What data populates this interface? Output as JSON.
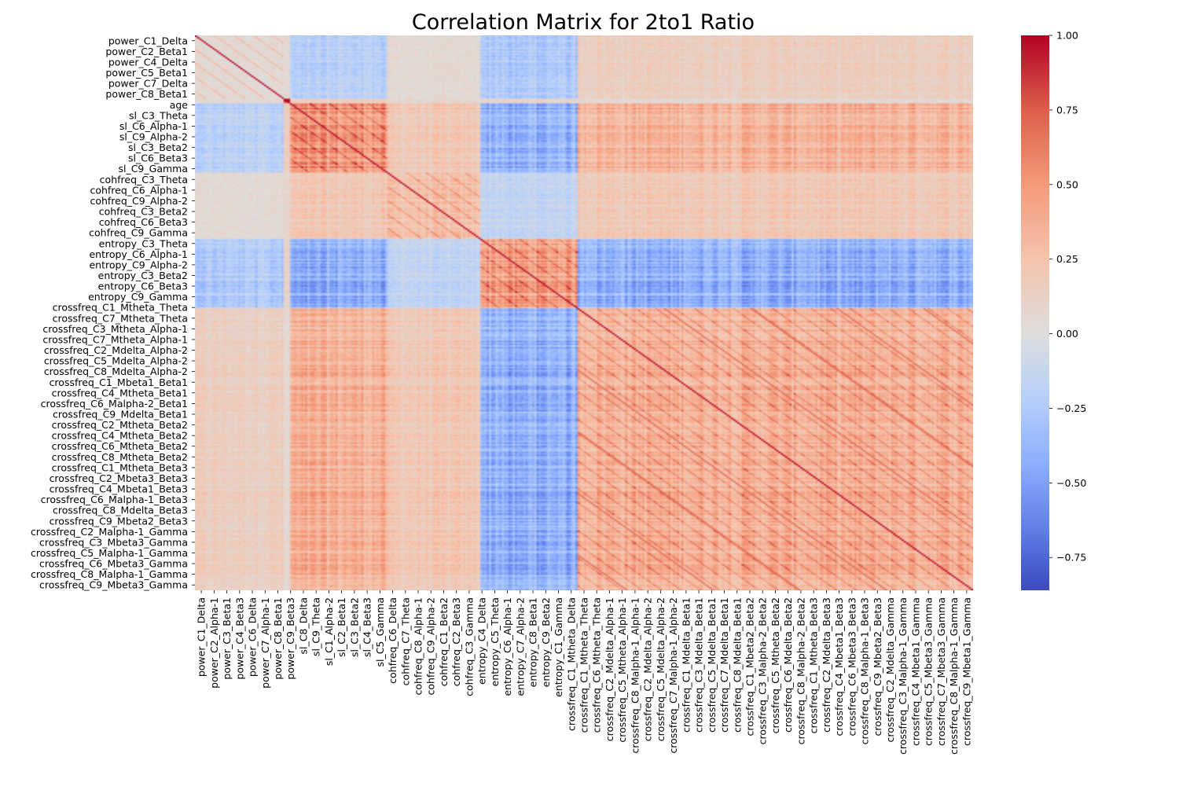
{
  "chart_data": {
    "type": "heatmap",
    "title": "Correlation Matrix for 2to1 Ratio",
    "xlabel": "",
    "ylabel": "",
    "colormap": "coolwarm",
    "value_range": [
      -0.86,
      1.0
    ],
    "colorbar_ticks": [
      "1.00",
      "0.75",
      "0.50",
      "0.25",
      "0.00",
      "−0.25",
      "−0.50",
      "−0.75"
    ],
    "colorbar_tick_values": [
      1.0,
      0.75,
      0.5,
      0.25,
      0.0,
      -0.25,
      -0.5,
      -0.75
    ],
    "diagonal_value": 1.0,
    "row_tick_labels": [
      "power_C1_Delta",
      "power_C2_Beta1",
      "power_C4_Delta",
      "power_C5_Beta1",
      "power_C7_Delta",
      "power_C8_Beta1",
      "age",
      "sl_C3_Theta",
      "sl_C6_Alpha-1",
      "sl_C9_Alpha-2",
      "sl_C3_Beta2",
      "sl_C6_Beta3",
      "sl_C9_Gamma",
      "cohfreq_C3_Theta",
      "cohfreq_C6_Alpha-1",
      "cohfreq_C9_Alpha-2",
      "cohfreq_C3_Beta2",
      "cohfreq_C6_Beta3",
      "cohfreq_C9_Gamma",
      "entropy_C3_Theta",
      "entropy_C6_Alpha-1",
      "entropy_C9_Alpha-2",
      "entropy_C3_Beta2",
      "entropy_C6_Beta3",
      "entropy_C9_Gamma",
      "crossfreq_C1_Mtheta_Theta",
      "crossfreq_C7_Mtheta_Theta",
      "crossfreq_C3_Mtheta_Alpha-1",
      "crossfreq_C7_Mtheta_Alpha-1",
      "crossfreq_C2_Mdelta_Alpha-2",
      "crossfreq_C5_Mdelta_Alpha-2",
      "crossfreq_C8_Mdelta_Alpha-2",
      "crossfreq_C1_Mbeta1_Beta1",
      "crossfreq_C4_Mtheta_Beta1",
      "crossfreq_C6_Malpha-2_Beta1",
      "crossfreq_C9_Mdelta_Beta1",
      "crossfreq_C2_Mtheta_Beta2",
      "crossfreq_C4_Mtheta_Beta2",
      "crossfreq_C6_Mtheta_Beta2",
      "crossfreq_C8_Mtheta_Beta2",
      "crossfreq_C1_Mtheta_Beta3",
      "crossfreq_C2_Mbeta3_Beta3",
      "crossfreq_C4_Mbeta1_Beta3",
      "crossfreq_C6_Malpha-1_Beta3",
      "crossfreq_C8_Mdelta_Beta3",
      "crossfreq_C9_Mbeta2_Beta3",
      "crossfreq_C2_Malpha-1_Gamma",
      "crossfreq_C3_Mbeta3_Gamma",
      "crossfreq_C5_Malpha-1_Gamma",
      "crossfreq_C6_Mbeta3_Gamma",
      "crossfreq_C8_Malpha-1_Gamma",
      "crossfreq_C9_Mbeta3_Gamma"
    ],
    "col_tick_labels": [
      "power_C1_Delta",
      "power_C2_Alpha-1",
      "power_C3_Beta1",
      "power_C4_Beta3",
      "power_C6_Delta",
      "power_C7_Alpha-1",
      "power_C8_Beta1",
      "power_C9_Beta3",
      "sl_C8_Delta",
      "sl_C9_Theta",
      "sl_C1_Alpha-2",
      "sl_C2_Beta1",
      "sl_C3_Beta2",
      "sl_C4_Beta3",
      "sl_C5_Gamma",
      "cohfreq_C6_Delta",
      "cohfreq_C7_Theta",
      "cohfreq_C8_Alpha-1",
      "cohfreq_C9_Alpha-2",
      "cohfreq_C1_Beta2",
      "cohfreq_C2_Beta3",
      "cohfreq_C3_Gamma",
      "entropy_C4_Delta",
      "entropy_C5_Theta",
      "entropy_C6_Alpha-1",
      "entropy_C7_Alpha-2",
      "entropy_C8_Beta1",
      "entropy_C9_Beta2",
      "entropy_C1_Gamma",
      "crossfreq_C1_Mtheta_Delta",
      "crossfreq_C1_Mtheta_Theta",
      "crossfreq_C6_Mtheta_Theta",
      "crossfreq_C2_Mdelta_Alpha-1",
      "crossfreq_C5_Mtheta_Alpha-1",
      "crossfreq_C8_Malpha-1_Alpha-1",
      "crossfreq_C2_Mdelta_Alpha-2",
      "crossfreq_C5_Mdelta_Alpha-2",
      "crossfreq_C7_Malpha-1_Alpha-2",
      "crossfreq_C1_Mdelta_Beta1",
      "crossfreq_C3_Mdelta_Beta1",
      "crossfreq_C5_Mdelta_Beta1",
      "crossfreq_C7_Mdelta_Beta1",
      "crossfreq_C8_Mdelta_Beta1",
      "crossfreq_C1_Mbeta2_Beta2",
      "crossfreq_C3_Malpha-2_Beta2",
      "crossfreq_C5_Mtheta_Beta2",
      "crossfreq_C6_Mdelta_Beta2",
      "crossfreq_C8_Malpha-2_Beta2",
      "crossfreq_C1_Mtheta_Beta3",
      "crossfreq_C2_Mdelta_Beta3",
      "crossfreq_C4_Mbeta1_Beta3",
      "crossfreq_C6_Mbeta3_Beta3",
      "crossfreq_C8_Malpha-1_Beta3",
      "crossfreq_C9_Mbeta2_Beta3",
      "crossfreq_C2_Mdelta_Gamma",
      "crossfreq_C3_Malpha-1_Gamma",
      "crossfreq_C4_Mbeta1_Gamma",
      "crossfreq_C5_Mbeta3_Gamma",
      "crossfreq_C7_Mbeta3_Gamma",
      "crossfreq_C8_Malpha-1_Gamma",
      "crossfreq_C9_Mbeta1_Gamma"
    ],
    "feature_blocks": [
      {
        "name": "power",
        "fraction": 0.112
      },
      {
        "name": "age",
        "fraction": 0.01
      },
      {
        "name": "sl",
        "fraction": 0.125
      },
      {
        "name": "cohfreq",
        "fraction": 0.118
      },
      {
        "name": "entropy",
        "fraction": 0.124
      },
      {
        "name": "crossfreq",
        "fraction": 0.511
      }
    ],
    "block_correlation": [
      [
        0.05,
        0.05,
        -0.2,
        0.05,
        -0.25,
        0.15
      ],
      [
        0.05,
        1.0,
        0.15,
        0.08,
        0.1,
        0.05
      ],
      [
        -0.2,
        0.15,
        0.5,
        0.2,
        -0.4,
        0.35
      ],
      [
        0.05,
        0.08,
        0.2,
        0.25,
        -0.15,
        0.2
      ],
      [
        -0.25,
        0.1,
        -0.4,
        -0.15,
        0.45,
        -0.4
      ],
      [
        0.15,
        0.05,
        0.35,
        0.2,
        -0.4,
        0.35
      ]
    ],
    "legend_position": "right"
  }
}
